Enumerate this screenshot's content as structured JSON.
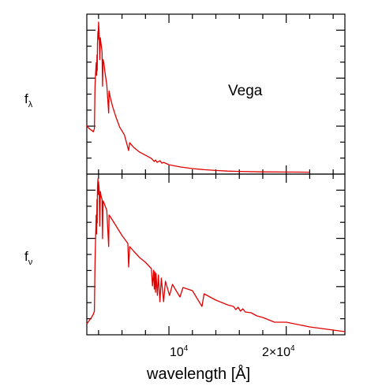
{
  "chart_data": [
    {
      "type": "line",
      "panel": "top",
      "ylabel": "f",
      "ylabel_sub": "λ",
      "annotation": "Vega",
      "xlim": [
        3000,
        25000
      ],
      "ylim": [
        0,
        1
      ],
      "y_ticks": "unlabeled",
      "series": [
        {
          "color": "#e00000",
          "x": [
            3000,
            3200,
            3400,
            3550,
            3647,
            3700,
            3750,
            3800,
            3835,
            3870,
            3889,
            3910,
            3950,
            3970,
            4000,
            4050,
            4101,
            4150,
            4200,
            4250,
            4300,
            4340,
            4380,
            4450,
            4550,
            4700,
            4861,
            4900,
            5000,
            5200,
            5500,
            5800,
            6200,
            6563,
            6650,
            7000,
            7500,
            8000,
            8500,
            8750,
            8860,
            9000,
            9230,
            9400,
            9550,
            10000,
            11000,
            12000,
            13000,
            14000,
            15000,
            16000,
            18000,
            20000,
            22000
          ],
          "y": [
            0.3,
            0.28,
            0.27,
            0.26,
            0.28,
            0.55,
            0.63,
            0.7,
            0.62,
            0.75,
            0.65,
            0.82,
            0.9,
            0.85,
            0.96,
            0.9,
            0.72,
            0.86,
            0.83,
            0.8,
            0.77,
            0.55,
            0.72,
            0.7,
            0.64,
            0.56,
            0.38,
            0.52,
            0.48,
            0.42,
            0.35,
            0.29,
            0.24,
            0.14,
            0.19,
            0.16,
            0.13,
            0.11,
            0.09,
            0.07,
            0.08,
            0.065,
            0.075,
            0.06,
            0.065,
            0.05,
            0.035,
            0.025,
            0.018,
            0.013,
            0.009,
            0.007,
            0.004,
            0.003,
            0.002
          ]
        }
      ]
    },
    {
      "type": "line",
      "panel": "bottom",
      "ylabel": "f",
      "ylabel_sub": "ν",
      "xlabel": "wavelength [Å]",
      "xlim": [
        3000,
        25000
      ],
      "ylim": [
        0,
        1
      ],
      "x_tick_labels": [
        {
          "value": 10000,
          "base": "10",
          "exp": "4"
        },
        {
          "value": 20000,
          "base": "2×10",
          "exp": "4"
        }
      ],
      "x_minor_step": 2000,
      "y_ticks": "unlabeled",
      "series": [
        {
          "color": "#e00000",
          "x": [
            3000,
            3200,
            3400,
            3550,
            3647,
            3700,
            3750,
            3800,
            3835,
            3870,
            3889,
            3910,
            3950,
            3970,
            4000,
            4050,
            4101,
            4150,
            4200,
            4250,
            4300,
            4340,
            4380,
            4450,
            4550,
            4700,
            4861,
            4900,
            5000,
            5500,
            6000,
            6500,
            6563,
            6650,
            7000,
            7500,
            8000,
            8500,
            8600,
            8700,
            8750,
            8800,
            8862,
            8900,
            9015,
            9100,
            9229,
            9350,
            9546,
            9700,
            10049,
            10300,
            10938,
            11200,
            12000,
            12818,
            13000,
            14000,
            15000,
            15500,
            15700,
            15900,
            16100,
            16300,
            16500,
            17000,
            17500,
            18000,
            19000,
            20000,
            22000,
            24000,
            25000
          ],
          "y": [
            0.06,
            0.08,
            0.1,
            0.12,
            0.14,
            0.45,
            0.6,
            0.75,
            0.63,
            0.85,
            0.7,
            0.92,
            0.98,
            0.88,
            0.96,
            0.92,
            0.68,
            0.9,
            0.88,
            0.86,
            0.85,
            0.6,
            0.84,
            0.83,
            0.81,
            0.78,
            0.55,
            0.75,
            0.74,
            0.68,
            0.62,
            0.57,
            0.42,
            0.55,
            0.52,
            0.48,
            0.45,
            0.41,
            0.3,
            0.4,
            0.28,
            0.39,
            0.26,
            0.38,
            0.24,
            0.37,
            0.2,
            0.35,
            0.2,
            0.33,
            0.24,
            0.31,
            0.23,
            0.29,
            0.27,
            0.17,
            0.25,
            0.21,
            0.18,
            0.17,
            0.15,
            0.165,
            0.14,
            0.155,
            0.135,
            0.13,
            0.11,
            0.1,
            0.07,
            0.07,
            0.04,
            0.02,
            0.01
          ]
        }
      ]
    }
  ]
}
